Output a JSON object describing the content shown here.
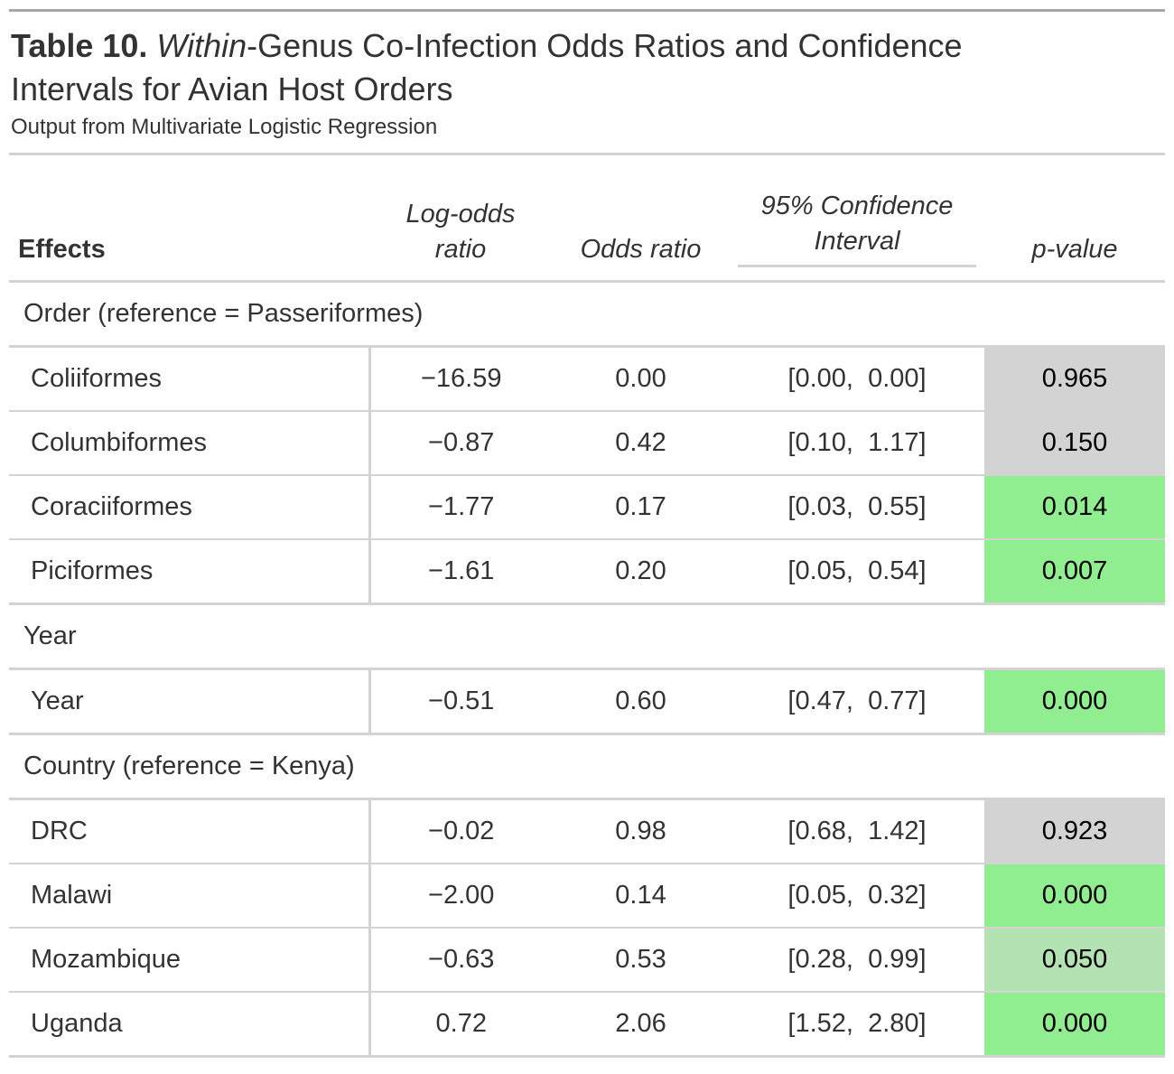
{
  "title": {
    "label": "Table 10.",
    "italic": "Within",
    "rest": "-Genus Co-Infection Odds Ratios and Confidence",
    "line2": "Intervals for Avian Host Orders"
  },
  "subtitle": "Output from Multivariate Logistic Regression",
  "columns": {
    "effects": "Effects",
    "log_odds_line1": "Log-odds",
    "log_odds_line2": "ratio",
    "odds_ratio": "Odds ratio",
    "ci_line1": "95% Confidence",
    "ci_line2": "Interval",
    "p_value": "p-value"
  },
  "colors": {
    "significant": "#90ee90",
    "marginal": "#b3e3b3",
    "not_significant": "#d3d3d3"
  },
  "groups": [
    {
      "label": "Order (reference = Passeriformes)",
      "rows": [
        {
          "effect": "Coliiformes",
          "log_odds": "−16.59",
          "odds_ratio": "0.00",
          "ci_low": "[0.00,",
          "ci_high": "0.00]",
          "p_value": "0.965",
          "status": "not_significant"
        },
        {
          "effect": "Columbiformes",
          "log_odds": "−0.87",
          "odds_ratio": "0.42",
          "ci_low": "[0.10,",
          "ci_high": "1.17]",
          "p_value": "0.150",
          "status": "not_significant"
        },
        {
          "effect": "Coraciiformes",
          "log_odds": "−1.77",
          "odds_ratio": "0.17",
          "ci_low": "[0.03,",
          "ci_high": "0.55]",
          "p_value": "0.014",
          "status": "significant"
        },
        {
          "effect": "Piciformes",
          "log_odds": "−1.61",
          "odds_ratio": "0.20",
          "ci_low": "[0.05,",
          "ci_high": "0.54]",
          "p_value": "0.007",
          "status": "significant"
        }
      ]
    },
    {
      "label": "Year",
      "rows": [
        {
          "effect": "Year",
          "log_odds": "−0.51",
          "odds_ratio": "0.60",
          "ci_low": "[0.47,",
          "ci_high": "0.77]",
          "p_value": "0.000",
          "status": "significant"
        }
      ]
    },
    {
      "label": "Country (reference = Kenya)",
      "rows": [
        {
          "effect": "DRC",
          "log_odds": "−0.02",
          "odds_ratio": "0.98",
          "ci_low": "[0.68,",
          "ci_high": "1.42]",
          "p_value": "0.923",
          "status": "not_significant"
        },
        {
          "effect": "Malawi",
          "log_odds": "−2.00",
          "odds_ratio": "0.14",
          "ci_low": "[0.05,",
          "ci_high": "0.32]",
          "p_value": "0.000",
          "status": "significant"
        },
        {
          "effect": "Mozambique",
          "log_odds": "−0.63",
          "odds_ratio": "0.53",
          "ci_low": "[0.28,",
          "ci_high": "0.99]",
          "p_value": "0.050",
          "status": "marginal"
        },
        {
          "effect": "Uganda",
          "log_odds": "0.72",
          "odds_ratio": "2.06",
          "ci_low": "[1.52,",
          "ci_high": "2.80]",
          "p_value": "0.000",
          "status": "significant"
        }
      ]
    }
  ]
}
